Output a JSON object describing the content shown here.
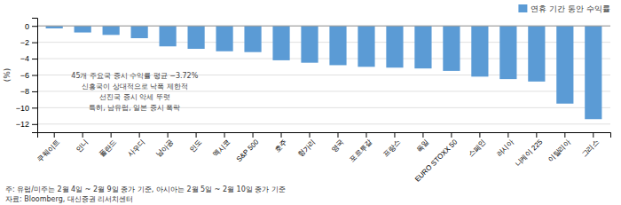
{
  "chart_data": {
    "type": "bar",
    "categories": [
      "쿠웨이트",
      "인니",
      "폴란드",
      "사우디",
      "남아공",
      "인도",
      "멕시코",
      "S&P 500",
      "호주",
      "헝가리",
      "영국",
      "포르투갈",
      "프랑스",
      "독일",
      "EURO STOXX 50",
      "스페인",
      "러시아",
      "니케이 225",
      "이탈리아",
      "그리스"
    ],
    "series": [
      {
        "name": "연휴 기간 동안 수익률",
        "color": "#5B9BD5",
        "values": [
          -0.3,
          -0.8,
          -1.1,
          -1.5,
          -2.5,
          -2.8,
          -3.1,
          -3.2,
          -4.2,
          -4.5,
          -4.8,
          -5.0,
          -5.1,
          -5.2,
          -5.5,
          -6.2,
          -6.5,
          -6.8,
          -9.5,
          -11.4
        ]
      }
    ],
    "y_label": "(%)",
    "ylim": [
      -13,
      1
    ],
    "yticks": [
      0,
      {
        "value": -2,
        "label": "−2"
      },
      {
        "value": -4,
        "label": "−4"
      },
      {
        "value": -6,
        "label": "−6"
      },
      {
        "value": -8,
        "label": "−8"
      },
      {
        "value": -10,
        "label": "−10"
      },
      {
        "value": -12,
        "label": "−12"
      }
    ],
    "annotations": [
      "45개 주요국 증시 수익률 평균  −3.72%",
      "신흥국이 상대적으로 낙폭 제한적",
      "선진국 증시 악세 뚜렷",
      "특히, 남유럽, 일본 증시 폭락"
    ],
    "notes": [
      "주: 유럽/미주는 2월 4일 ~ 2월 9일 종가 기준, 아시아는 2월 5일 ~ 2월 10일 종가 기준",
      "자료: Bloomberg, 대신증권 리서치센터"
    ],
    "grid": true,
    "legend": "upper right"
  }
}
